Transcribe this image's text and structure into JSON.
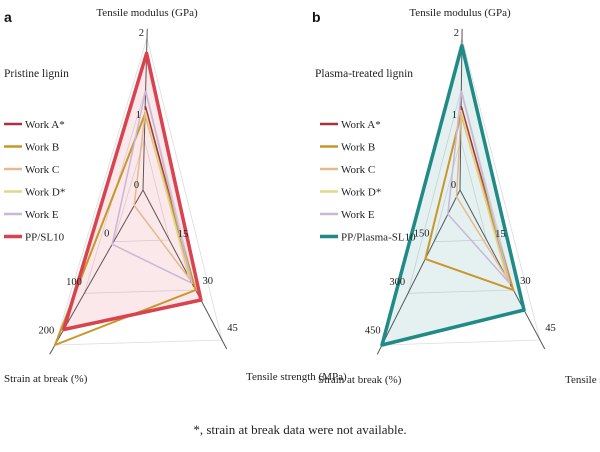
{
  "colors": {
    "work_a": "#a8323f",
    "work_b": "#c9962a",
    "work_c": "#e7b98c",
    "work_d": "#dfd88a",
    "work_e": "#c9b7d7",
    "pp_sl10": "#d9434f",
    "pp_plasma": "#1f8a86"
  },
  "footnote": "*, strain at break data were not available.",
  "chart_data": [
    {
      "type": "radar",
      "panel": "a",
      "title": "Pristine lignin",
      "axes": [
        {
          "label": "Tensile modulus (GPa)",
          "ticks": [
            "0",
            "1",
            "2"
          ],
          "max": 2
        },
        {
          "label": "Tensile strength (MPa)",
          "ticks": [
            "15",
            "30",
            "45"
          ],
          "max": 45
        },
        {
          "label": "Strain at break (%)",
          "ticks": [
            "0",
            "100",
            "200"
          ],
          "max": 200
        }
      ],
      "series": [
        {
          "name": "Work A*",
          "color_key": "work_a",
          "values": [
            1.1,
            29,
            null
          ],
          "width": 2
        },
        {
          "name": "Work B",
          "color_key": "work_b",
          "values": [
            1.0,
            30,
            200
          ],
          "width": 2
        },
        {
          "name": "Work C",
          "color_key": "work_c",
          "values": [
            1.0,
            27,
            20
          ],
          "width": 1.5
        },
        {
          "name": "Work D*",
          "color_key": "work_d",
          "values": [
            1.05,
            26,
            null
          ],
          "width": 1.5
        },
        {
          "name": "Work E",
          "color_key": "work_e",
          "values": [
            1.3,
            28,
            70
          ],
          "width": 1.5
        },
        {
          "name": "PP/SL10",
          "color_key": "pp_sl10",
          "values": [
            1.8,
            33,
            180
          ],
          "width": 3.5,
          "fill": true
        }
      ]
    },
    {
      "type": "radar",
      "panel": "b",
      "title": "Plasma-treated lignin",
      "axes": [
        {
          "label": "Tensile modulus (GPa)",
          "ticks": [
            "0",
            "1",
            "2"
          ],
          "max": 2
        },
        {
          "label": "Tensile strength (MPa)",
          "ticks": [
            "15",
            "30",
            "45"
          ],
          "max": 45
        },
        {
          "label": "Strain at break (%)",
          "ticks": [
            "150",
            "300",
            "450"
          ],
          "max": 450
        }
      ],
      "series": [
        {
          "name": "Work A*",
          "color_key": "work_a",
          "values": [
            1.1,
            29,
            null
          ],
          "width": 2
        },
        {
          "name": "Work B",
          "color_key": "work_b",
          "values": [
            1.0,
            30,
            200
          ],
          "width": 2
        },
        {
          "name": "Work C",
          "color_key": "work_c",
          "values": [
            1.0,
            27,
            20
          ],
          "width": 1.5
        },
        {
          "name": "Work D*",
          "color_key": "work_d",
          "values": [
            1.05,
            26,
            null
          ],
          "width": 1.5
        },
        {
          "name": "Work E",
          "color_key": "work_e",
          "values": [
            1.3,
            28,
            70
          ],
          "width": 1.5
        },
        {
          "name": "PP/Plasma-SL10",
          "color_key": "pp_plasma",
          "values": [
            1.9,
            36,
            450
          ],
          "width": 3.5,
          "fill": true
        }
      ]
    }
  ]
}
